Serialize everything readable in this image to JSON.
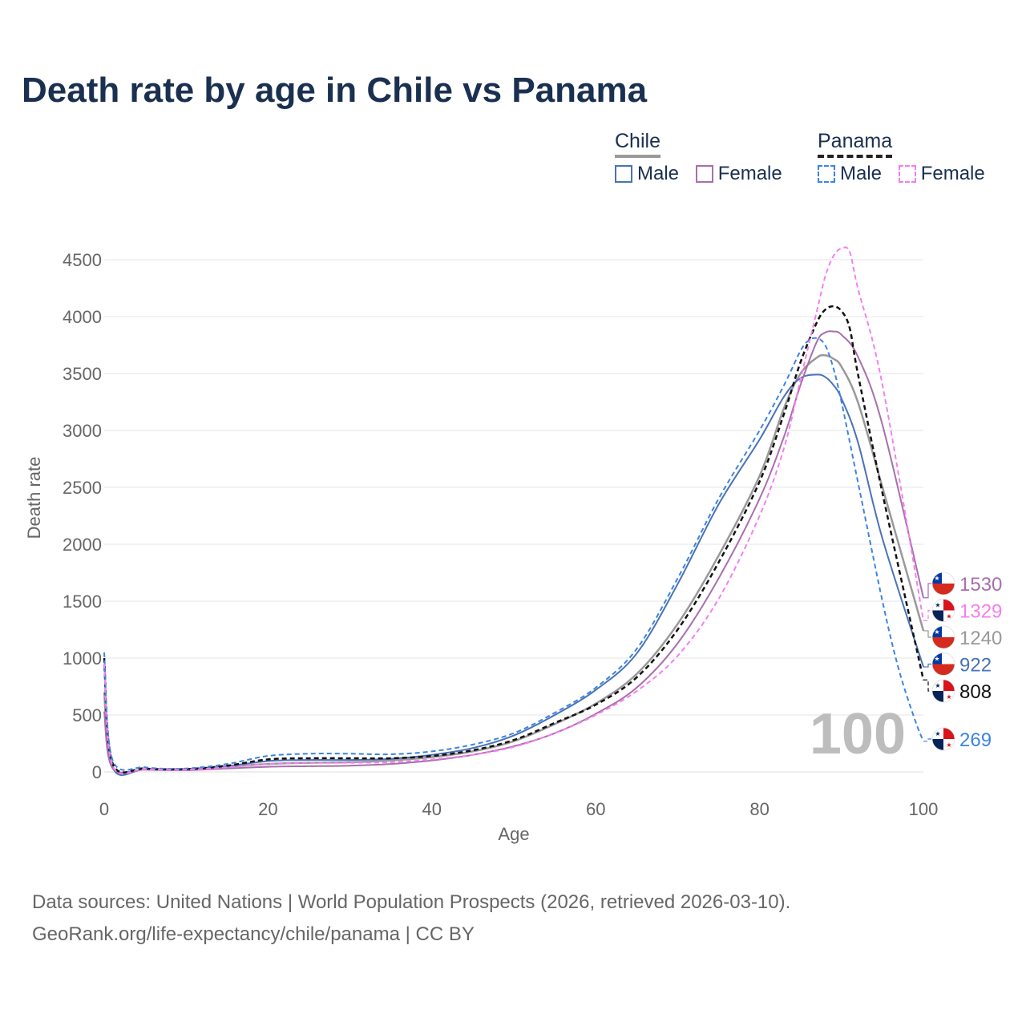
{
  "title": "Death rate by age in Chile vs Panama",
  "legend": {
    "chile": {
      "heading": "Chile",
      "male": "Male",
      "female": "Female"
    },
    "panama": {
      "heading": "Panama",
      "male": "Male",
      "female": "Female"
    }
  },
  "colors": {
    "chile_male": "#4a72b8",
    "chile_female": "#a86fad",
    "chile_total": "#999999",
    "panama_male": "#3b84e3",
    "panama_female": "#f57ef0",
    "panama_total": "#111111"
  },
  "chart_data": {
    "type": "line",
    "title": "Death rate by age in Chile vs Panama",
    "xlabel": "Age",
    "ylabel": "Death rate",
    "xlim": [
      0,
      100
    ],
    "ylim": [
      0,
      4500
    ],
    "xticks": [
      0,
      20,
      40,
      60,
      80,
      100
    ],
    "yticks": [
      0,
      500,
      1000,
      1500,
      2000,
      2500,
      3000,
      3500,
      4000,
      4500
    ],
    "annotation": "100",
    "series": [
      {
        "key": "chile_total",
        "name": "Chile",
        "dashed": false,
        "end_value": 1240,
        "flag": "chile",
        "x": [
          0,
          1,
          5,
          10,
          15,
          20,
          25,
          30,
          35,
          40,
          45,
          50,
          55,
          60,
          65,
          70,
          75,
          80,
          83,
          85,
          87,
          88,
          89,
          90,
          92,
          95,
          100
        ],
        "y": [
          700,
          40,
          22,
          20,
          45,
          70,
          80,
          85,
          100,
          130,
          180,
          270,
          420,
          600,
          860,
          1300,
          1900,
          2600,
          3200,
          3500,
          3640,
          3660,
          3630,
          3560,
          3250,
          2500,
          1240
        ]
      },
      {
        "key": "chile_male",
        "name": "Chile Male",
        "dashed": false,
        "end_value": 922,
        "flag": "chile",
        "x": [
          0,
          1,
          5,
          10,
          15,
          20,
          25,
          30,
          35,
          40,
          45,
          50,
          55,
          60,
          65,
          70,
          75,
          80,
          83,
          85,
          87,
          88,
          89,
          90,
          92,
          95,
          100
        ],
        "y": [
          950,
          45,
          25,
          20,
          50,
          95,
          105,
          105,
          115,
          150,
          210,
          320,
          500,
          720,
          1040,
          1650,
          2350,
          2920,
          3300,
          3460,
          3490,
          3470,
          3400,
          3280,
          2900,
          2050,
          922
        ]
      },
      {
        "key": "chile_female",
        "name": "Chile Female",
        "dashed": false,
        "end_value": 1530,
        "flag": "chile",
        "x": [
          0,
          1,
          5,
          10,
          15,
          20,
          25,
          30,
          35,
          40,
          45,
          50,
          55,
          60,
          65,
          70,
          75,
          80,
          83,
          85,
          87,
          88,
          89,
          90,
          92,
          95,
          100
        ],
        "y": [
          530,
          35,
          20,
          15,
          30,
          45,
          50,
          55,
          70,
          100,
          150,
          225,
          340,
          510,
          740,
          1130,
          1700,
          2400,
          2950,
          3400,
          3780,
          3860,
          3870,
          3840,
          3650,
          3050,
          1530
        ]
      },
      {
        "key": "panama_total",
        "name": "Panama",
        "dashed": true,
        "end_value": 808,
        "flag": "panama",
        "x": [
          0,
          1,
          5,
          10,
          15,
          20,
          25,
          30,
          35,
          40,
          45,
          50,
          55,
          60,
          65,
          70,
          75,
          80,
          83,
          85,
          87,
          88,
          89,
          90,
          91,
          92,
          95,
          100
        ],
        "y": [
          1000,
          80,
          30,
          25,
          55,
          110,
          120,
          120,
          120,
          140,
          190,
          280,
          430,
          590,
          830,
          1250,
          1840,
          2550,
          3150,
          3600,
          3950,
          4060,
          4090,
          4050,
          3900,
          3500,
          2450,
          808
        ]
      },
      {
        "key": "panama_male",
        "name": "Panama Male",
        "dashed": true,
        "end_value": 269,
        "flag": "panama",
        "x": [
          0,
          1,
          5,
          10,
          15,
          20,
          25,
          30,
          35,
          40,
          45,
          50,
          55,
          60,
          65,
          70,
          75,
          80,
          83,
          85,
          86,
          87,
          88,
          89,
          90,
          92,
          95,
          97,
          99,
          100
        ],
        "y": [
          1050,
          110,
          40,
          30,
          70,
          140,
          160,
          160,
          155,
          180,
          240,
          340,
          520,
          740,
          1080,
          1700,
          2400,
          3000,
          3400,
          3700,
          3790,
          3810,
          3750,
          3550,
          3250,
          2550,
          1500,
          900,
          450,
          269
        ]
      },
      {
        "key": "panama_female",
        "name": "Panama Female",
        "dashed": true,
        "end_value": 1329,
        "flag": "panama",
        "x": [
          0,
          1,
          5,
          10,
          15,
          20,
          25,
          30,
          35,
          40,
          45,
          50,
          55,
          60,
          65,
          70,
          75,
          80,
          83,
          85,
          87,
          88,
          89,
          90,
          91,
          92,
          95,
          100
        ],
        "y": [
          950,
          60,
          25,
          20,
          40,
          70,
          80,
          80,
          85,
          110,
          150,
          220,
          340,
          500,
          710,
          1020,
          1520,
          2250,
          2850,
          3450,
          4050,
          4350,
          4530,
          4600,
          4570,
          4250,
          3400,
          1329
        ]
      }
    ]
  },
  "footer": {
    "line1": "Data sources: United Nations | World Population Prospects (2026, retrieved 2026-03-10).",
    "line2": "GeoRank.org/life-expectancy/chile/panama | CC BY"
  }
}
